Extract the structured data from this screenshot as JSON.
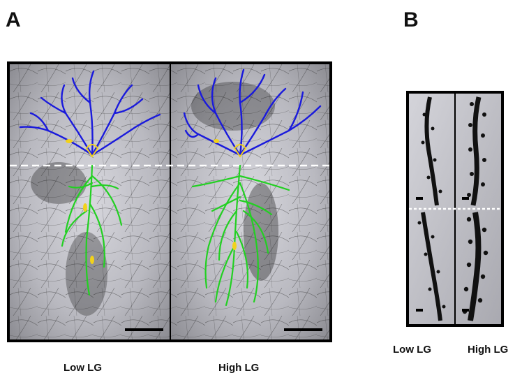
{
  "figure": {
    "panel_a": {
      "letter": "A",
      "labels": {
        "left": "Low LG",
        "right": "High LG"
      }
    },
    "panel_b": {
      "letter": "B",
      "labels": {
        "left": "Low LG",
        "right": "High LG"
      }
    }
  },
  "colors": {
    "apical_dendrite": "#1a1adc",
    "basal_dendrite": "#22d022",
    "soma_marker": "#f2d21a",
    "background_tissue": "#c8c8c8",
    "divider_dashed": "#ffffff"
  },
  "icons": [
    "scale-bar",
    "neuron-tracing",
    "dendrite-spine-image"
  ]
}
